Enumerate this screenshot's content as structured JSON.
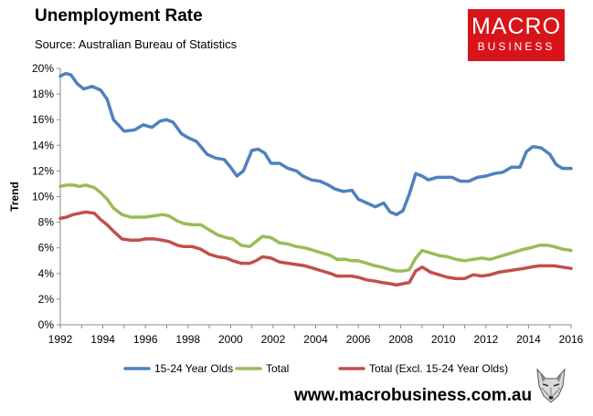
{
  "header": {
    "title": "Unemployment Rate",
    "source": "Source: Australian Bureau of Statistics"
  },
  "logo": {
    "line1": "MACRO",
    "line2": "BUSINESS"
  },
  "footer": {
    "website": "www.macrobusiness.com.au"
  },
  "colors": {
    "youth": "#4f81bd",
    "total": "#9bbb59",
    "excl": "#c0504d",
    "axis": "#888888"
  },
  "chart_data": {
    "type": "line",
    "title": "Unemployment Rate",
    "xlabel": "",
    "ylabel": "Trend",
    "xlim": [
      1992,
      2016
    ],
    "ylim": [
      0,
      20
    ],
    "x_ticks": [
      "1992",
      "1994",
      "1996",
      "1998",
      "2000",
      "2002",
      "2004",
      "2006",
      "2008",
      "2010",
      "2012",
      "2014",
      "2016"
    ],
    "y_ticks": [
      "0%",
      "2%",
      "4%",
      "6%",
      "8%",
      "10%",
      "12%",
      "14%",
      "16%",
      "18%",
      "20%"
    ],
    "grid": false,
    "legend_position": "bottom",
    "series": [
      {
        "name": "15-24 Year Olds",
        "color": "#4f81bd",
        "x": [
          1992.0,
          1992.25,
          1992.5,
          1992.8,
          1993.1,
          1993.5,
          1993.9,
          1994.2,
          1994.5,
          1995.0,
          1995.5,
          1995.9,
          1996.3,
          1996.7,
          1997.0,
          1997.3,
          1997.7,
          1998.0,
          1998.4,
          1998.9,
          1999.3,
          1999.7,
          2000.0,
          2000.3,
          2000.6,
          2001.0,
          2001.3,
          2001.6,
          2001.9,
          2002.3,
          2002.7,
          2003.1,
          2003.4,
          2003.8,
          2004.2,
          2004.6,
          2004.9,
          2005.3,
          2005.7,
          2006.0,
          2006.4,
          2006.8,
          2007.2,
          2007.5,
          2007.8,
          2008.1,
          2008.4,
          2008.7,
          2009.0,
          2009.3,
          2009.7,
          2010.0,
          2010.4,
          2010.8,
          2011.2,
          2011.6,
          2012.0,
          2012.4,
          2012.8,
          2013.2,
          2013.6,
          2013.9,
          2014.2,
          2014.6,
          2015.0,
          2015.3,
          2015.6,
          2016.0
        ],
        "values": [
          19.4,
          19.6,
          19.5,
          18.8,
          18.4,
          18.6,
          18.3,
          17.6,
          16.0,
          15.1,
          15.2,
          15.6,
          15.4,
          15.9,
          16.0,
          15.8,
          14.9,
          14.6,
          14.3,
          13.3,
          13.0,
          12.9,
          12.3,
          11.6,
          12.0,
          13.6,
          13.7,
          13.4,
          12.6,
          12.6,
          12.2,
          12.0,
          11.6,
          11.3,
          11.2,
          10.9,
          10.6,
          10.4,
          10.5,
          9.8,
          9.5,
          9.2,
          9.5,
          8.8,
          8.6,
          8.9,
          10.2,
          11.8,
          11.6,
          11.3,
          11.5,
          11.5,
          11.5,
          11.2,
          11.2,
          11.5,
          11.6,
          11.8,
          11.9,
          12.3,
          12.3,
          13.5,
          13.9,
          13.8,
          13.3,
          12.5,
          12.2,
          12.2
        ]
      },
      {
        "name": "Total",
        "color": "#9bbb59",
        "x": [
          1992.0,
          1992.3,
          1992.6,
          1992.9,
          1993.2,
          1993.6,
          1993.9,
          1994.2,
          1994.5,
          1994.9,
          1995.3,
          1995.7,
          1996.0,
          1996.4,
          1996.8,
          1997.1,
          1997.5,
          1997.8,
          1998.2,
          1998.6,
          1999.0,
          1999.4,
          1999.8,
          2000.1,
          2000.5,
          2000.9,
          2001.2,
          2001.5,
          2001.9,
          2002.3,
          2002.7,
          2003.1,
          2003.5,
          2003.9,
          2004.3,
          2004.7,
          2005.0,
          2005.4,
          2005.7,
          2006.0,
          2006.4,
          2006.8,
          2007.1,
          2007.5,
          2007.8,
          2008.1,
          2008.4,
          2008.7,
          2009.0,
          2009.4,
          2009.8,
          2010.2,
          2010.6,
          2011.0,
          2011.4,
          2011.8,
          2012.2,
          2012.6,
          2013.0,
          2013.4,
          2013.8,
          2014.1,
          2014.5,
          2014.9,
          2015.2,
          2015.6,
          2016.0
        ],
        "values": [
          10.8,
          10.9,
          10.9,
          10.8,
          10.9,
          10.7,
          10.3,
          9.8,
          9.1,
          8.6,
          8.4,
          8.4,
          8.4,
          8.5,
          8.6,
          8.5,
          8.1,
          7.9,
          7.8,
          7.8,
          7.4,
          7.0,
          6.8,
          6.7,
          6.2,
          6.1,
          6.5,
          6.9,
          6.8,
          6.4,
          6.3,
          6.1,
          6.0,
          5.8,
          5.6,
          5.4,
          5.1,
          5.1,
          5.0,
          5.0,
          4.8,
          4.6,
          4.5,
          4.3,
          4.2,
          4.2,
          4.3,
          5.2,
          5.8,
          5.6,
          5.4,
          5.3,
          5.1,
          5.0,
          5.1,
          5.2,
          5.1,
          5.3,
          5.5,
          5.7,
          5.9,
          6.0,
          6.2,
          6.2,
          6.1,
          5.9,
          5.8
        ]
      },
      {
        "name": "Total (Excl. 15-24 Year Olds)",
        "color": "#c0504d",
        "x": [
          1992.0,
          1992.3,
          1992.6,
          1992.9,
          1993.2,
          1993.6,
          1993.9,
          1994.2,
          1994.5,
          1994.9,
          1995.3,
          1995.7,
          1996.0,
          1996.4,
          1996.8,
          1997.1,
          1997.5,
          1997.8,
          1998.2,
          1998.6,
          1999.0,
          1999.4,
          1999.8,
          2000.1,
          2000.5,
          2000.9,
          2001.2,
          2001.5,
          2001.9,
          2002.3,
          2002.7,
          2003.1,
          2003.5,
          2003.9,
          2004.3,
          2004.7,
          2005.0,
          2005.4,
          2005.7,
          2006.0,
          2006.4,
          2006.8,
          2007.1,
          2007.5,
          2007.8,
          2008.1,
          2008.4,
          2008.7,
          2009.0,
          2009.4,
          2009.8,
          2010.2,
          2010.6,
          2011.0,
          2011.4,
          2011.8,
          2012.2,
          2012.6,
          2013.0,
          2013.4,
          2013.8,
          2014.1,
          2014.5,
          2014.9,
          2015.2,
          2015.6,
          2016.0
        ],
        "values": [
          8.3,
          8.4,
          8.6,
          8.7,
          8.8,
          8.7,
          8.2,
          7.8,
          7.3,
          6.7,
          6.6,
          6.6,
          6.7,
          6.7,
          6.6,
          6.5,
          6.2,
          6.1,
          6.1,
          5.9,
          5.5,
          5.3,
          5.2,
          5.0,
          4.8,
          4.8,
          5.0,
          5.3,
          5.2,
          4.9,
          4.8,
          4.7,
          4.6,
          4.4,
          4.2,
          4.0,
          3.8,
          3.8,
          3.8,
          3.7,
          3.5,
          3.4,
          3.3,
          3.2,
          3.1,
          3.2,
          3.3,
          4.2,
          4.5,
          4.1,
          3.9,
          3.7,
          3.6,
          3.6,
          3.9,
          3.8,
          3.9,
          4.1,
          4.2,
          4.3,
          4.4,
          4.5,
          4.6,
          4.6,
          4.6,
          4.5,
          4.4
        ]
      }
    ]
  }
}
